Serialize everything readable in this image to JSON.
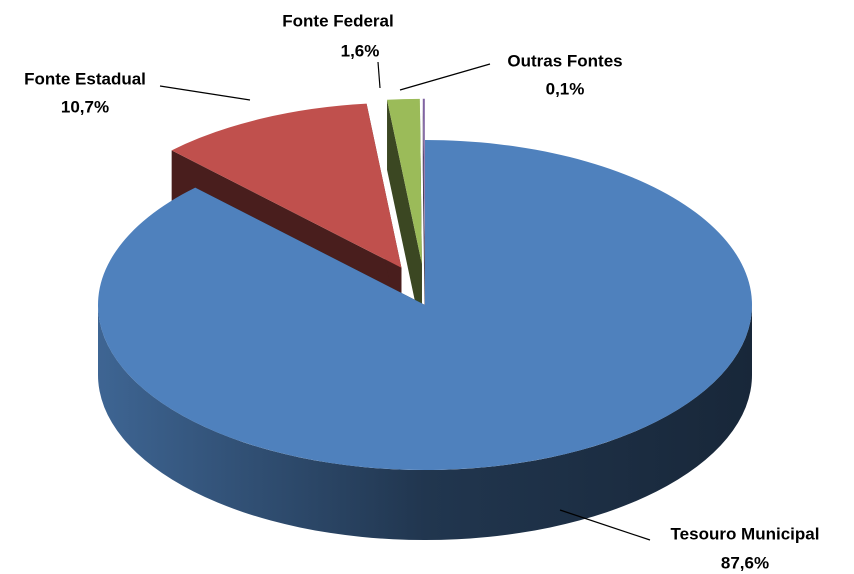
{
  "chart_data": {
    "type": "pie",
    "categories": [
      "Tesouro Municipal",
      "Fonte Estadual",
      "Fonte Federal",
      "Outras Fontes"
    ],
    "values": [
      87.6,
      10.7,
      1.6,
      0.1
    ],
    "value_labels": [
      "87,6%",
      "10,7%",
      "1,6%",
      "0,1%"
    ],
    "colors": [
      "#4f81bd",
      "#c0504d",
      "#9bbb59",
      "#8064a2"
    ]
  }
}
